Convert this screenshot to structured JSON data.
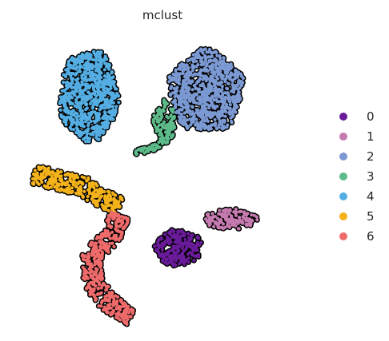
{
  "chart_data": {
    "type": "scatter",
    "title": "mclust",
    "xlabel": "",
    "ylabel": "",
    "grid": false,
    "axes_visible": false,
    "legend_position": "right",
    "xlim": [
      0,
      10
    ],
    "ylim": [
      0,
      10
    ],
    "series": [
      {
        "name": "0",
        "color": "#6a1b9a",
        "shapes": [
          {
            "kind": "blob",
            "cx": 5.4,
            "cy": 2.7,
            "rx": 0.75,
            "ry": 0.6
          }
        ]
      },
      {
        "name": "1",
        "color": "#c67bb0",
        "shapes": [
          {
            "kind": "blob",
            "cx": 7.1,
            "cy": 3.65,
            "rx": 0.85,
            "ry": 0.35
          }
        ]
      },
      {
        "name": "2",
        "color": "#7b99d3",
        "shapes": [
          {
            "kind": "blob",
            "cx": 6.3,
            "cy": 7.9,
            "rx": 1.2,
            "ry": 1.35
          }
        ]
      },
      {
        "name": "3",
        "color": "#5dbb8a",
        "shapes": [
          {
            "kind": "blob",
            "cx": 4.95,
            "cy": 6.9,
            "rx": 0.35,
            "ry": 0.7
          },
          {
            "kind": "line",
            "points": [
              [
                4.0,
                5.85
              ],
              [
                4.5,
                5.95
              ],
              [
                5.0,
                6.3
              ]
            ],
            "width": 0.22
          }
        ]
      },
      {
        "name": "4",
        "color": "#54aee3",
        "shapes": [
          {
            "kind": "blob",
            "cx": 2.5,
            "cy": 7.75,
            "rx": 0.95,
            "ry": 1.5
          }
        ]
      },
      {
        "name": "5",
        "color": "#f4b21b",
        "shapes": [
          {
            "kind": "line",
            "points": [
              [
                0.7,
                5.15
              ],
              [
                1.4,
                4.95
              ],
              [
                2.3,
                4.75
              ],
              [
                3.0,
                4.3
              ],
              [
                3.5,
                4.05
              ]
            ],
            "width": 0.65
          }
        ]
      },
      {
        "name": "6",
        "color": "#ef6b6b",
        "shapes": [
          {
            "kind": "line",
            "points": [
              [
                3.5,
                3.8
              ],
              [
                3.2,
                3.0
              ],
              [
                2.6,
                2.5
              ],
              [
                2.6,
                1.6
              ],
              [
                3.1,
                0.9
              ],
              [
                3.9,
                0.4
              ]
            ],
            "width": 0.65
          }
        ]
      }
    ]
  },
  "legend": {
    "entries": [
      {
        "label": "0",
        "color": "#6a1b9a"
      },
      {
        "label": "1",
        "color": "#c67bb0"
      },
      {
        "label": "2",
        "color": "#7b99d3"
      },
      {
        "label": "3",
        "color": "#5dbb8a"
      },
      {
        "label": "4",
        "color": "#54aee3"
      },
      {
        "label": "5",
        "color": "#f4b21b"
      },
      {
        "label": "6",
        "color": "#ef6b6b"
      }
    ]
  }
}
